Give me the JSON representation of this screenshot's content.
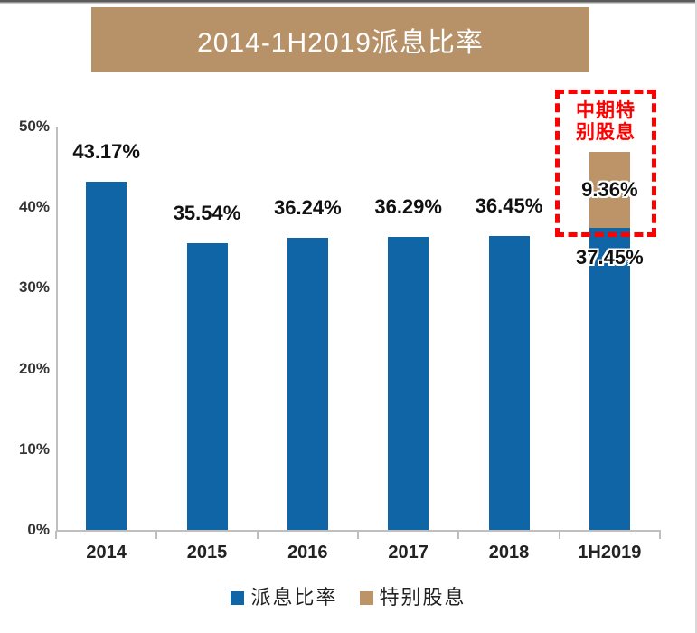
{
  "title": {
    "text": "2014-1H2019派息比率",
    "bg": "#B79269",
    "color": "#FFFFFF"
  },
  "chart_data": {
    "type": "bar",
    "stacked": true,
    "title": "2014-1H2019派息比率",
    "categories": [
      "2014",
      "2015",
      "2016",
      "2017",
      "2018",
      "1H2019"
    ],
    "series": [
      {
        "name": "派息比率",
        "color": "#1065A7",
        "values": [
          43.17,
          35.54,
          36.24,
          36.29,
          36.45,
          37.45
        ]
      },
      {
        "name": "特别股息",
        "color": "#BC9468",
        "values": [
          0,
          0,
          0,
          0,
          0,
          9.36
        ]
      }
    ],
    "bar_labels": [
      "43.17%",
      "35.54%",
      "36.24%",
      "36.29%",
      "36.45%",
      "37.45%"
    ],
    "special_segment_label": "9.36%",
    "ylim": [
      0,
      50
    ],
    "yticks": [
      "0%",
      "10%",
      "20%",
      "30%",
      "40%",
      "50%"
    ],
    "grid": "off",
    "legend_position": "bottom",
    "axis_color": "#BFBFBF"
  },
  "annotation": {
    "line1": "中期特",
    "line2": "别股息",
    "full_text": "中期特别股息",
    "color": "#FE0000"
  },
  "legend": {
    "items": [
      {
        "label": "派息比率"
      },
      {
        "label": "特别股息"
      }
    ]
  }
}
